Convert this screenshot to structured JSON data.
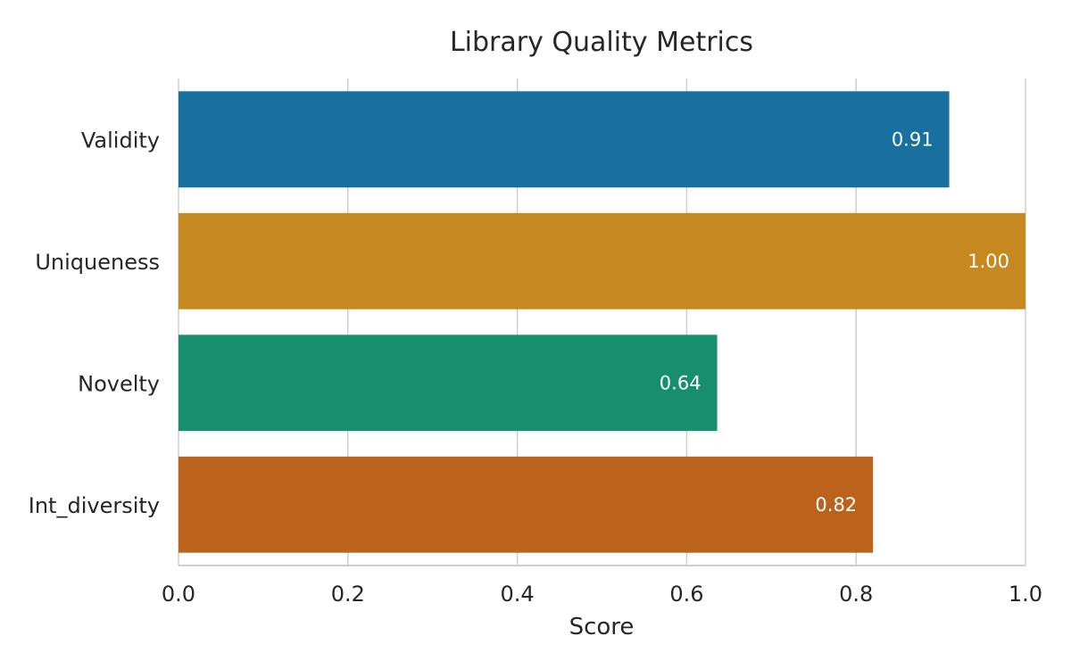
{
  "chart_data": {
    "type": "bar",
    "orientation": "horizontal",
    "title": "Library Quality Metrics",
    "xlabel": "Score",
    "ylabel": "",
    "xlim": [
      0,
      1.0
    ],
    "xticks": [
      "0.0",
      "0.2",
      "0.4",
      "0.6",
      "0.8",
      "1.0"
    ],
    "categories": [
      "Validity",
      "Uniqueness",
      "Novelty",
      "Int_diversity"
    ],
    "values": [
      0.91,
      1.0,
      0.636,
      0.82
    ],
    "data_labels": [
      "0.91",
      "1.00",
      "0.64",
      "0.82"
    ],
    "colors": [
      "#1770a0",
      "#c58920",
      "#178e6c",
      "#bb631d"
    ],
    "grid": "vertical",
    "legend": "none"
  }
}
